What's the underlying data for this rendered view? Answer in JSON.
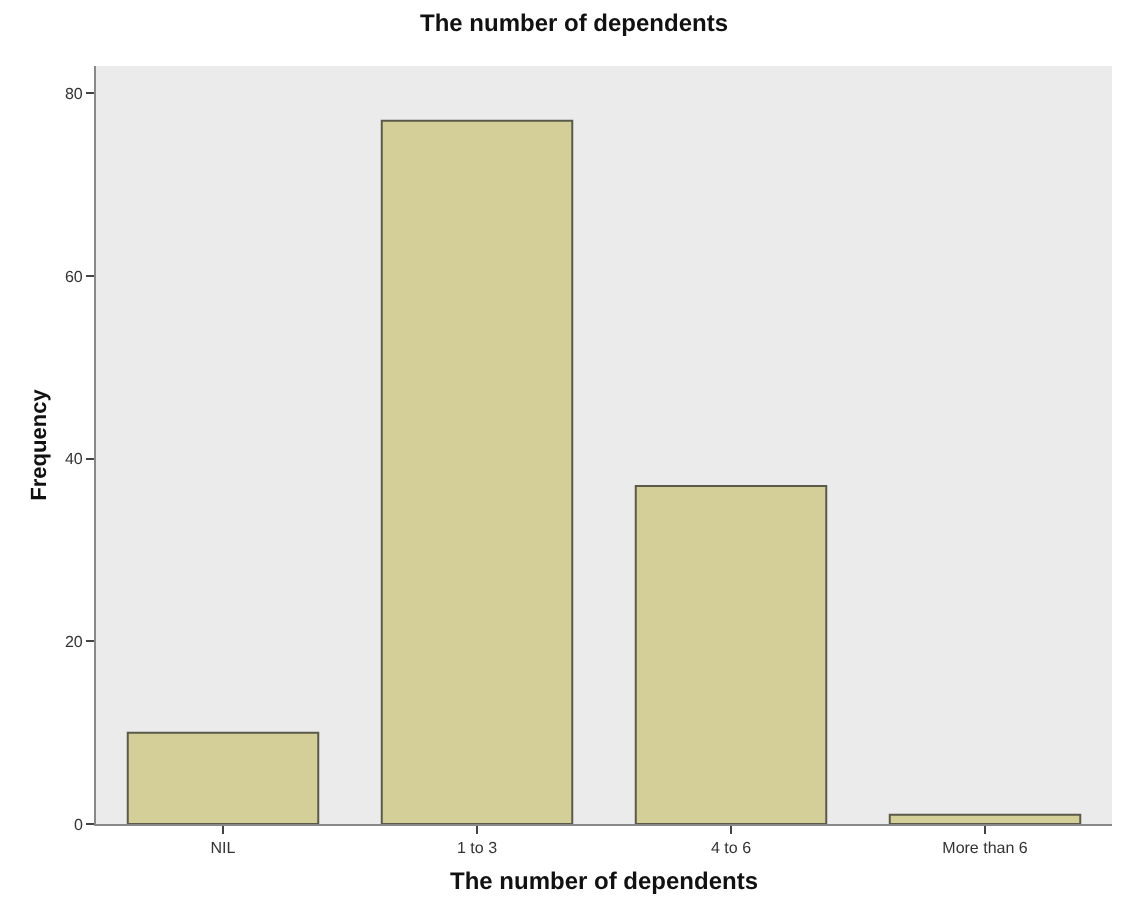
{
  "chart_data": {
    "type": "bar",
    "title": "The number of dependents",
    "xlabel": "The number of dependents",
    "ylabel": "Frequency",
    "categories": [
      "NIL",
      "1 to 3",
      "4 to 6",
      "More than 6"
    ],
    "values": [
      10,
      77,
      37,
      1
    ],
    "color": "#d4cf98",
    "ylim": [
      0,
      83
    ],
    "yticks": [
      0,
      20,
      40,
      60,
      80
    ],
    "grid": false
  }
}
